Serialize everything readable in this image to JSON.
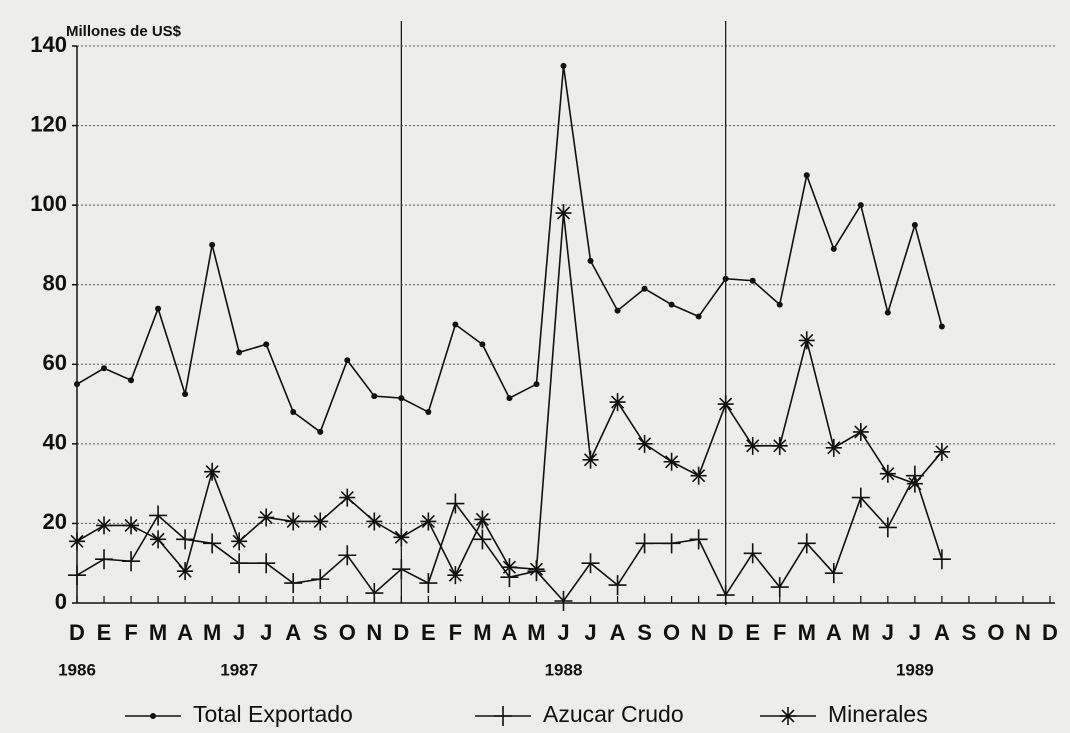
{
  "chart_data": {
    "type": "line",
    "y_axis_label": "Millones de US$",
    "categories": [
      "D",
      "E",
      "F",
      "M",
      "A",
      "M",
      "J",
      "J",
      "A",
      "S",
      "O",
      "N",
      "D",
      "E",
      "F",
      "M",
      "A",
      "M",
      "J",
      "J",
      "A",
      "S",
      "O",
      "N",
      "D",
      "E",
      "F",
      "M",
      "A",
      "M",
      "J",
      "J",
      "A",
      "S",
      "O",
      "N",
      "D"
    ],
    "years": [
      "1986",
      null,
      null,
      null,
      null,
      null,
      "1987",
      null,
      null,
      null,
      null,
      null,
      null,
      null,
      null,
      null,
      null,
      null,
      "1988",
      null,
      null,
      null,
      null,
      null,
      null,
      null,
      null,
      null,
      null,
      null,
      null,
      "1989",
      null,
      null,
      null,
      null,
      null
    ],
    "ylim": [
      0,
      140
    ],
    "yticks": [
      0,
      20,
      40,
      60,
      80,
      100,
      120,
      140
    ],
    "grid": true,
    "legend": "bottom",
    "series": [
      {
        "name": "Total Exportado",
        "color": "#111111",
        "marker": "dot",
        "values": [
          55,
          59,
          56,
          74,
          52.5,
          90,
          63,
          65,
          48,
          43,
          61,
          52,
          51.5,
          48,
          70,
          65,
          51.5,
          55,
          135,
          86,
          73.5,
          79,
          75,
          72,
          81.5,
          81,
          75,
          107.5,
          89,
          100,
          73,
          95,
          69.5,
          null,
          null,
          null,
          null
        ]
      },
      {
        "name": "Azucar Crudo",
        "color": "#111111",
        "marker": "plus",
        "values": [
          7,
          11,
          10.5,
          22,
          16,
          15,
          10,
          10,
          5,
          6,
          12,
          2.5,
          8.5,
          5,
          25,
          16,
          6.5,
          8,
          0.5,
          10,
          4.5,
          15,
          15,
          16,
          2,
          12.5,
          4,
          15,
          7.5,
          26.5,
          19,
          32,
          11,
          null,
          null,
          null,
          null
        ]
      },
      {
        "name": "Minerales",
        "color": "#111111",
        "marker": "asterisk",
        "values": [
          15.5,
          19.5,
          19.5,
          16,
          8,
          33,
          15.5,
          21.5,
          20.5,
          20.5,
          26.5,
          20.5,
          16.5,
          20.5,
          7,
          21,
          9,
          8.5,
          98,
          36,
          50.5,
          40,
          35.5,
          32,
          50,
          39.5,
          39.5,
          66,
          39,
          43,
          32.5,
          30,
          38,
          null,
          null,
          null,
          null
        ]
      }
    ]
  }
}
